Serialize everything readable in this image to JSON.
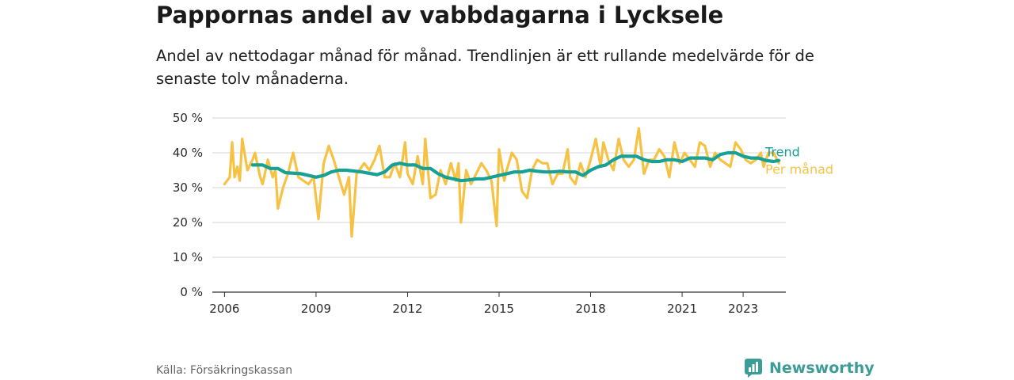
{
  "title": "Pappornas andel av vabbdagarna i Lycksele",
  "subtitle": "Andel av nettodagar månad för månad. Trendlinjen är ett rullande medelvärde för de senaste tolv månaderna.",
  "source": "Källa: Försäkringskassan",
  "brand": {
    "name": "Newsworthy",
    "logo_icon": "newsworthy-logo-icon",
    "color": "#3c9c98"
  },
  "chart_data": {
    "type": "line",
    "title": "Pappornas andel av vabbdagarna i Lycksele",
    "subtitle": "Andel av nettodagar månad för månad. Trendlinjen är ett rullande medelvärde för de senaste tolv månaderna.",
    "xlabel": "",
    "ylabel": "",
    "ylim": [
      0,
      50
    ],
    "xlim": [
      2005.6,
      2024.4
    ],
    "y_ticks": [
      0,
      10,
      20,
      30,
      40,
      50
    ],
    "y_tick_labels": [
      "0 %",
      "10 %",
      "20 %",
      "30 %",
      "40 %",
      "50 %"
    ],
    "x_ticks": [
      2006,
      2009,
      2012,
      2015,
      2018,
      2021,
      2023
    ],
    "x_tick_labels": [
      "2006",
      "2009",
      "2012",
      "2015",
      "2018",
      "2021",
      "2023"
    ],
    "grid": "horizontal",
    "legend": "inline-right",
    "series": [
      {
        "name": "Per månad",
        "color": "#f7c244",
        "points": [
          [
            2006.0,
            31
          ],
          [
            2006.17,
            33
          ],
          [
            2006.25,
            43
          ],
          [
            2006.33,
            33
          ],
          [
            2006.42,
            36
          ],
          [
            2006.5,
            32
          ],
          [
            2006.58,
            44
          ],
          [
            2006.75,
            35
          ],
          [
            2006.92,
            38
          ],
          [
            2007.0,
            40
          ],
          [
            2007.17,
            33
          ],
          [
            2007.25,
            31
          ],
          [
            2007.42,
            38
          ],
          [
            2007.58,
            33
          ],
          [
            2007.67,
            35
          ],
          [
            2007.75,
            24
          ],
          [
            2007.92,
            30
          ],
          [
            2008.08,
            34
          ],
          [
            2008.25,
            40
          ],
          [
            2008.42,
            33
          ],
          [
            2008.58,
            32
          ],
          [
            2008.75,
            31
          ],
          [
            2008.92,
            33
          ],
          [
            2009.08,
            21
          ],
          [
            2009.25,
            37
          ],
          [
            2009.42,
            42
          ],
          [
            2009.58,
            38
          ],
          [
            2009.75,
            33
          ],
          [
            2009.92,
            28
          ],
          [
            2010.08,
            33
          ],
          [
            2010.17,
            16
          ],
          [
            2010.33,
            34
          ],
          [
            2010.42,
            35
          ],
          [
            2010.58,
            37
          ],
          [
            2010.75,
            35
          ],
          [
            2010.92,
            38
          ],
          [
            2011.08,
            42
          ],
          [
            2011.25,
            33
          ],
          [
            2011.42,
            33
          ],
          [
            2011.58,
            37
          ],
          [
            2011.75,
            33
          ],
          [
            2011.92,
            43
          ],
          [
            2012.0,
            34
          ],
          [
            2012.17,
            31
          ],
          [
            2012.33,
            39
          ],
          [
            2012.5,
            31
          ],
          [
            2012.58,
            44
          ],
          [
            2012.75,
            27
          ],
          [
            2012.92,
            28
          ],
          [
            2013.08,
            35
          ],
          [
            2013.25,
            31
          ],
          [
            2013.42,
            37
          ],
          [
            2013.58,
            32
          ],
          [
            2013.67,
            37
          ],
          [
            2013.75,
            20
          ],
          [
            2013.92,
            35
          ],
          [
            2014.08,
            31
          ],
          [
            2014.25,
            34
          ],
          [
            2014.42,
            37
          ],
          [
            2014.58,
            35
          ],
          [
            2014.75,
            32
          ],
          [
            2014.92,
            19
          ],
          [
            2015.0,
            41
          ],
          [
            2015.17,
            32
          ],
          [
            2015.25,
            35
          ],
          [
            2015.42,
            40
          ],
          [
            2015.58,
            38
          ],
          [
            2015.75,
            29
          ],
          [
            2015.92,
            27
          ],
          [
            2016.08,
            35
          ],
          [
            2016.25,
            38
          ],
          [
            2016.42,
            37
          ],
          [
            2016.58,
            37
          ],
          [
            2016.75,
            31
          ],
          [
            2016.92,
            34
          ],
          [
            2017.08,
            34
          ],
          [
            2017.25,
            41
          ],
          [
            2017.33,
            33
          ],
          [
            2017.5,
            31
          ],
          [
            2017.67,
            37
          ],
          [
            2017.83,
            33
          ],
          [
            2018.0,
            38
          ],
          [
            2018.17,
            44
          ],
          [
            2018.33,
            36
          ],
          [
            2018.42,
            43
          ],
          [
            2018.58,
            38
          ],
          [
            2018.75,
            35
          ],
          [
            2018.92,
            44
          ],
          [
            2019.08,
            38
          ],
          [
            2019.25,
            36
          ],
          [
            2019.42,
            38
          ],
          [
            2019.58,
            47
          ],
          [
            2019.75,
            34
          ],
          [
            2019.92,
            38
          ],
          [
            2020.08,
            38
          ],
          [
            2020.25,
            41
          ],
          [
            2020.42,
            39
          ],
          [
            2020.58,
            33
          ],
          [
            2020.75,
            43
          ],
          [
            2020.92,
            37
          ],
          [
            2021.08,
            40
          ],
          [
            2021.25,
            38
          ],
          [
            2021.42,
            36
          ],
          [
            2021.58,
            43
          ],
          [
            2021.75,
            42
          ],
          [
            2021.92,
            36
          ],
          [
            2022.08,
            40
          ],
          [
            2022.25,
            38
          ],
          [
            2022.42,
            37
          ],
          [
            2022.58,
            36
          ],
          [
            2022.75,
            43
          ],
          [
            2022.92,
            41
          ],
          [
            2023.08,
            38
          ],
          [
            2023.25,
            37
          ],
          [
            2023.42,
            38
          ],
          [
            2023.58,
            40
          ],
          [
            2023.67,
            36
          ],
          [
            2023.83,
            40
          ],
          [
            2024.0,
            40
          ],
          [
            2024.17,
            37
          ]
        ]
      },
      {
        "name": "Trend",
        "color": "#17a095",
        "points": [
          [
            2006.92,
            36.5
          ],
          [
            2007.25,
            36.5
          ],
          [
            2007.5,
            35.5
          ],
          [
            2007.75,
            35.5
          ],
          [
            2008.0,
            34.3
          ],
          [
            2008.5,
            34.0
          ],
          [
            2008.75,
            33.5
          ],
          [
            2009.0,
            33.0
          ],
          [
            2009.25,
            33.5
          ],
          [
            2009.5,
            34.5
          ],
          [
            2009.75,
            35.0
          ],
          [
            2010.0,
            35.0
          ],
          [
            2010.5,
            34.5
          ],
          [
            2011.0,
            33.7
          ],
          [
            2011.25,
            34.5
          ],
          [
            2011.5,
            36.5
          ],
          [
            2011.75,
            37.0
          ],
          [
            2012.0,
            36.5
          ],
          [
            2012.25,
            36.5
          ],
          [
            2012.5,
            35.5
          ],
          [
            2012.75,
            35.5
          ],
          [
            2013.0,
            34.0
          ],
          [
            2013.25,
            33.0
          ],
          [
            2013.5,
            32.5
          ],
          [
            2013.75,
            32.0
          ],
          [
            2014.0,
            32.2
          ],
          [
            2014.25,
            32.5
          ],
          [
            2014.5,
            32.5
          ],
          [
            2014.75,
            33.0
          ],
          [
            2015.0,
            33.5
          ],
          [
            2015.25,
            34.0
          ],
          [
            2015.5,
            34.5
          ],
          [
            2015.75,
            34.5
          ],
          [
            2016.0,
            35.0
          ],
          [
            2016.25,
            34.7
          ],
          [
            2016.5,
            34.5
          ],
          [
            2016.75,
            34.5
          ],
          [
            2017.0,
            34.7
          ],
          [
            2017.25,
            34.5
          ],
          [
            2017.5,
            34.5
          ],
          [
            2017.75,
            33.5
          ],
          [
            2018.0,
            35.0
          ],
          [
            2018.25,
            36.0
          ],
          [
            2018.5,
            36.5
          ],
          [
            2018.75,
            38.0
          ],
          [
            2019.0,
            39.0
          ],
          [
            2019.25,
            39.0
          ],
          [
            2019.5,
            39.0
          ],
          [
            2019.75,
            38.0
          ],
          [
            2020.0,
            37.5
          ],
          [
            2020.25,
            37.5
          ],
          [
            2020.5,
            38.0
          ],
          [
            2020.75,
            38.0
          ],
          [
            2021.0,
            37.5
          ],
          [
            2021.25,
            38.5
          ],
          [
            2021.5,
            38.5
          ],
          [
            2021.75,
            38.5
          ],
          [
            2022.0,
            38.0
          ],
          [
            2022.25,
            39.5
          ],
          [
            2022.5,
            40.0
          ],
          [
            2022.75,
            40.0
          ],
          [
            2023.0,
            39.0
          ],
          [
            2023.25,
            38.5
          ],
          [
            2023.5,
            38.5
          ],
          [
            2023.75,
            37.8
          ],
          [
            2024.0,
            37.5
          ],
          [
            2024.17,
            37.8
          ]
        ]
      }
    ]
  }
}
